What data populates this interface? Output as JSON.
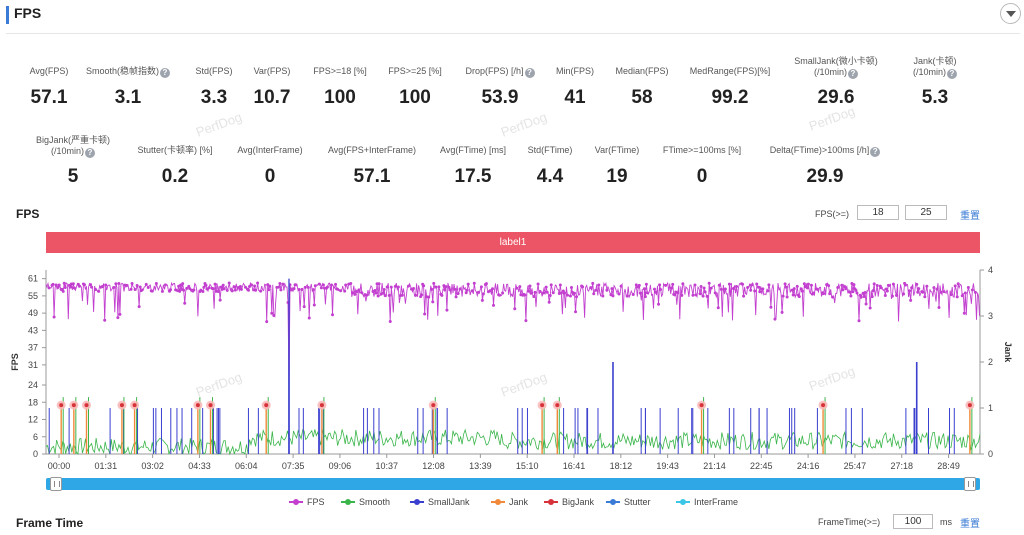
{
  "header": {
    "title": "FPS"
  },
  "metrics_row1": [
    {
      "label": "Avg(FPS)",
      "value": "57.1",
      "info": false
    },
    {
      "label": "Smooth(稳帧指数)",
      "value": "3.1",
      "info": true
    },
    {
      "label": "Std(FPS)",
      "value": "3.3",
      "info": false
    },
    {
      "label": "Var(FPS)",
      "value": "10.7",
      "info": false
    },
    {
      "label": "FPS>=18 [%]",
      "value": "100",
      "info": false
    },
    {
      "label": "FPS>=25 [%]",
      "value": "100",
      "info": false
    },
    {
      "label": "Drop(FPS) [/h]",
      "value": "53.9",
      "info": true
    },
    {
      "label": "Min(FPS)",
      "value": "41",
      "info": false
    },
    {
      "label": "Median(FPS)",
      "value": "58",
      "info": false
    },
    {
      "label": "MedRange(FPS)[%]",
      "value": "99.2",
      "info": false
    },
    {
      "label": "SmallJank(微小卡顿)",
      "label2": "(/10min)",
      "value": "29.6",
      "info": true
    },
    {
      "label": "Jank(卡顿)",
      "label2": "(/10min)",
      "value": "5.3",
      "info": true
    }
  ],
  "metrics_row2": [
    {
      "label": "BigJank(严重卡顿)",
      "label2": "(/10min)",
      "value": "5",
      "info": true
    },
    {
      "label": "Stutter(卡顿率) [%]",
      "value": "0.2",
      "info": false
    },
    {
      "label": "Avg(InterFrame)",
      "value": "0",
      "info": false
    },
    {
      "label": "Avg(FPS+InterFrame)",
      "value": "57.1",
      "info": false
    },
    {
      "label": "Avg(FTime) [ms]",
      "value": "17.5",
      "info": false
    },
    {
      "label": "Std(FTime)",
      "value": "4.4",
      "info": false
    },
    {
      "label": "Var(FTime)",
      "value": "19",
      "info": false
    },
    {
      "label": "FTime>=100ms [%]",
      "value": "0",
      "info": false
    },
    {
      "label": "Delta(FTime)>100ms [/h]",
      "value": "29.9",
      "info": true
    }
  ],
  "fps_section": {
    "title": "FPS",
    "threshold_label": "FPS(>=)",
    "threshold_1": "18",
    "threshold_2": "25",
    "reset_label": "重置"
  },
  "label_band": "label1",
  "watermark": "PerfDog",
  "chart_data": {
    "type": "line",
    "ylabel": "FPS",
    "y2label": "Jank",
    "yticks": [
      0,
      6,
      12,
      18,
      24,
      31,
      37,
      43,
      49,
      55,
      61
    ],
    "y2ticks": [
      0,
      1,
      2,
      3,
      4
    ],
    "ylim": [
      0,
      64
    ],
    "y2lim": [
      0,
      4
    ],
    "xticks": [
      "00:00",
      "01:31",
      "03:02",
      "04:33",
      "06:04",
      "07:35",
      "09:06",
      "10:37",
      "12:08",
      "13:39",
      "15:10",
      "16:41",
      "18:12",
      "19:43",
      "21:14",
      "22:45",
      "24:16",
      "25:47",
      "27:18",
      "28:49"
    ],
    "x_range_seconds": [
      0,
      1845
    ],
    "fps_baseline": 58,
    "fps_min": 41,
    "fps_spike_time_s": 480,
    "fps_spike_value": 41,
    "bigjank_times_s": [
      30,
      55,
      80,
      150,
      175,
      300,
      325,
      435,
      545,
      765,
      980,
      1010,
      1295,
      1535,
      1825
    ],
    "bigjank_level_fps": 17,
    "smalljank_spike_times_s": [
      480,
      1120,
      1720
    ],
    "smalljank_spike_values": [
      3.3,
      2.0,
      2.0
    ],
    "series": [
      {
        "name": "FPS",
        "color": "#c23fcf"
      },
      {
        "name": "Smooth",
        "color": "#3ab54a"
      },
      {
        "name": "SmallJank",
        "color": "#3b3fcf"
      },
      {
        "name": "Jank",
        "color": "#f08a3a"
      },
      {
        "name": "BigJank",
        "color": "#d7323a"
      },
      {
        "name": "Stutter",
        "color": "#3a7bd5"
      },
      {
        "name": "InterFrame",
        "color": "#3ac6e6"
      }
    ]
  },
  "frame_time_section": {
    "title": "Frame Time",
    "threshold_label": "FrameTime(>=)",
    "threshold_value": "100",
    "unit": "ms",
    "reset_label": "重置"
  }
}
